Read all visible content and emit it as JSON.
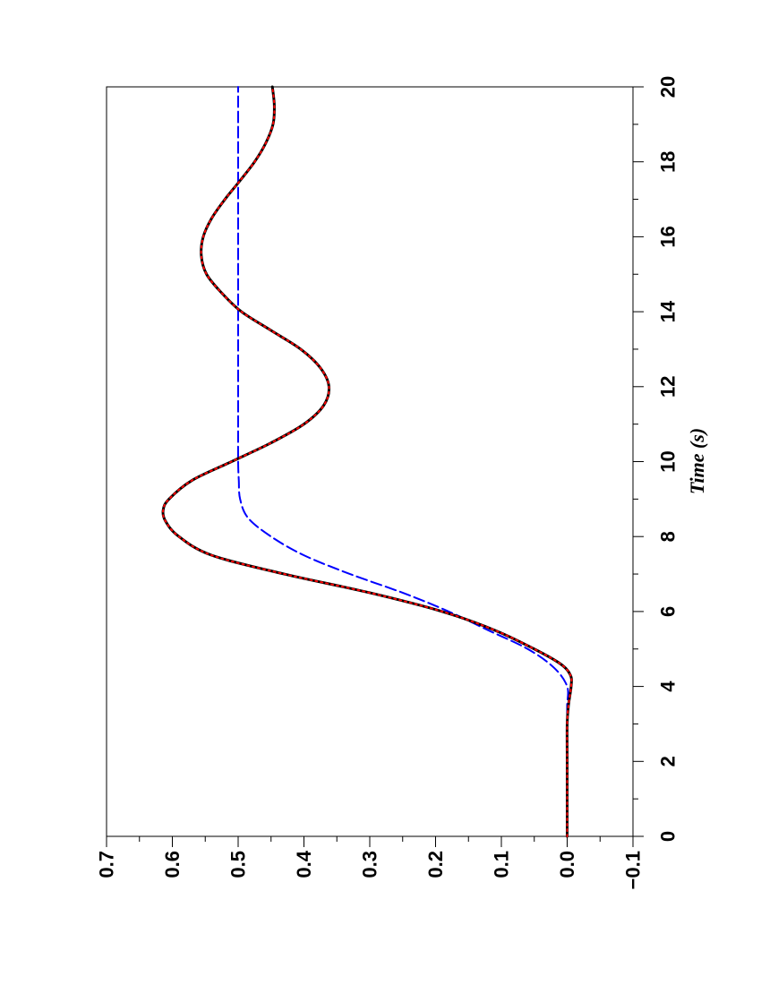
{
  "chart_data": {
    "type": "line",
    "orientation": "rotated-90-ccw",
    "xlabel": "Time (s)",
    "ylabel": "",
    "xlim": [
      0,
      20
    ],
    "ylim": [
      -0.1,
      0.7
    ],
    "x_ticks": [
      "0",
      "2",
      "4",
      "6",
      "8",
      "10",
      "12",
      "14",
      "16",
      "18",
      "20"
    ],
    "y_ticks": [
      "−0.1",
      "0.0",
      "0.1",
      "0.2",
      "0.3",
      "0.4",
      "0.5",
      "0.6",
      "0.7"
    ],
    "grid": false,
    "legend": "none",
    "series": [
      {
        "color": "#0000ff",
        "style": "dashed",
        "x": [
          0,
          1,
          2,
          3,
          3.5,
          4,
          4.5,
          5,
          5.5,
          6,
          6.5,
          7,
          7.5,
          8,
          8.5,
          9,
          9.5,
          10,
          11,
          12,
          14,
          16,
          18,
          20
        ],
        "y": [
          0.0,
          0.0,
          0.0,
          0.0,
          0.0,
          0.0,
          0.02,
          0.06,
          0.12,
          0.18,
          0.25,
          0.33,
          0.4,
          0.45,
          0.485,
          0.497,
          0.499,
          0.5,
          0.5,
          0.5,
          0.5,
          0.5,
          0.5,
          0.5
        ]
      },
      {
        "color": "#000000",
        "style": "solid",
        "x": [
          0,
          1,
          2,
          3,
          3.5,
          4,
          4.3,
          4.6,
          5,
          5.5,
          6,
          6.5,
          7,
          7.5,
          8,
          8.4,
          8.7,
          9.0,
          9.5,
          10,
          10.5,
          11,
          11.5,
          12,
          12.5,
          13,
          13.5,
          14,
          14.5,
          15,
          15.5,
          16,
          16.5,
          17,
          17.5,
          18,
          18.5,
          19,
          19.5,
          20
        ],
        "y": [
          0.0,
          0.0,
          0.0,
          0.0,
          -0.002,
          -0.006,
          -0.005,
          0.01,
          0.05,
          0.11,
          0.19,
          0.3,
          0.43,
          0.54,
          0.59,
          0.61,
          0.614,
          0.605,
          0.57,
          0.51,
          0.45,
          0.4,
          0.37,
          0.362,
          0.375,
          0.405,
          0.45,
          0.495,
          0.525,
          0.548,
          0.556,
          0.553,
          0.54,
          0.52,
          0.497,
          0.475,
          0.458,
          0.447,
          0.445,
          0.448
        ]
      },
      {
        "color": "#ff0000",
        "style": "dotted",
        "x": [
          0,
          1,
          2,
          3,
          3.5,
          4,
          4.3,
          4.6,
          5,
          5.5,
          6,
          6.5,
          7,
          7.5,
          8,
          8.4,
          8.7,
          9.0,
          9.5,
          10,
          10.5,
          11,
          11.5,
          12,
          12.5,
          13,
          13.5,
          14,
          14.5,
          15,
          15.5,
          16,
          16.5,
          17,
          17.5,
          18,
          18.5,
          19,
          19.5,
          20
        ],
        "y": [
          0.0,
          0.0,
          0.0,
          0.0,
          -0.002,
          -0.006,
          -0.005,
          0.01,
          0.05,
          0.11,
          0.19,
          0.3,
          0.43,
          0.54,
          0.59,
          0.61,
          0.614,
          0.605,
          0.57,
          0.51,
          0.45,
          0.4,
          0.37,
          0.362,
          0.375,
          0.405,
          0.45,
          0.495,
          0.525,
          0.548,
          0.556,
          0.553,
          0.54,
          0.52,
          0.497,
          0.475,
          0.458,
          0.447,
          0.445,
          0.448
        ]
      }
    ]
  }
}
